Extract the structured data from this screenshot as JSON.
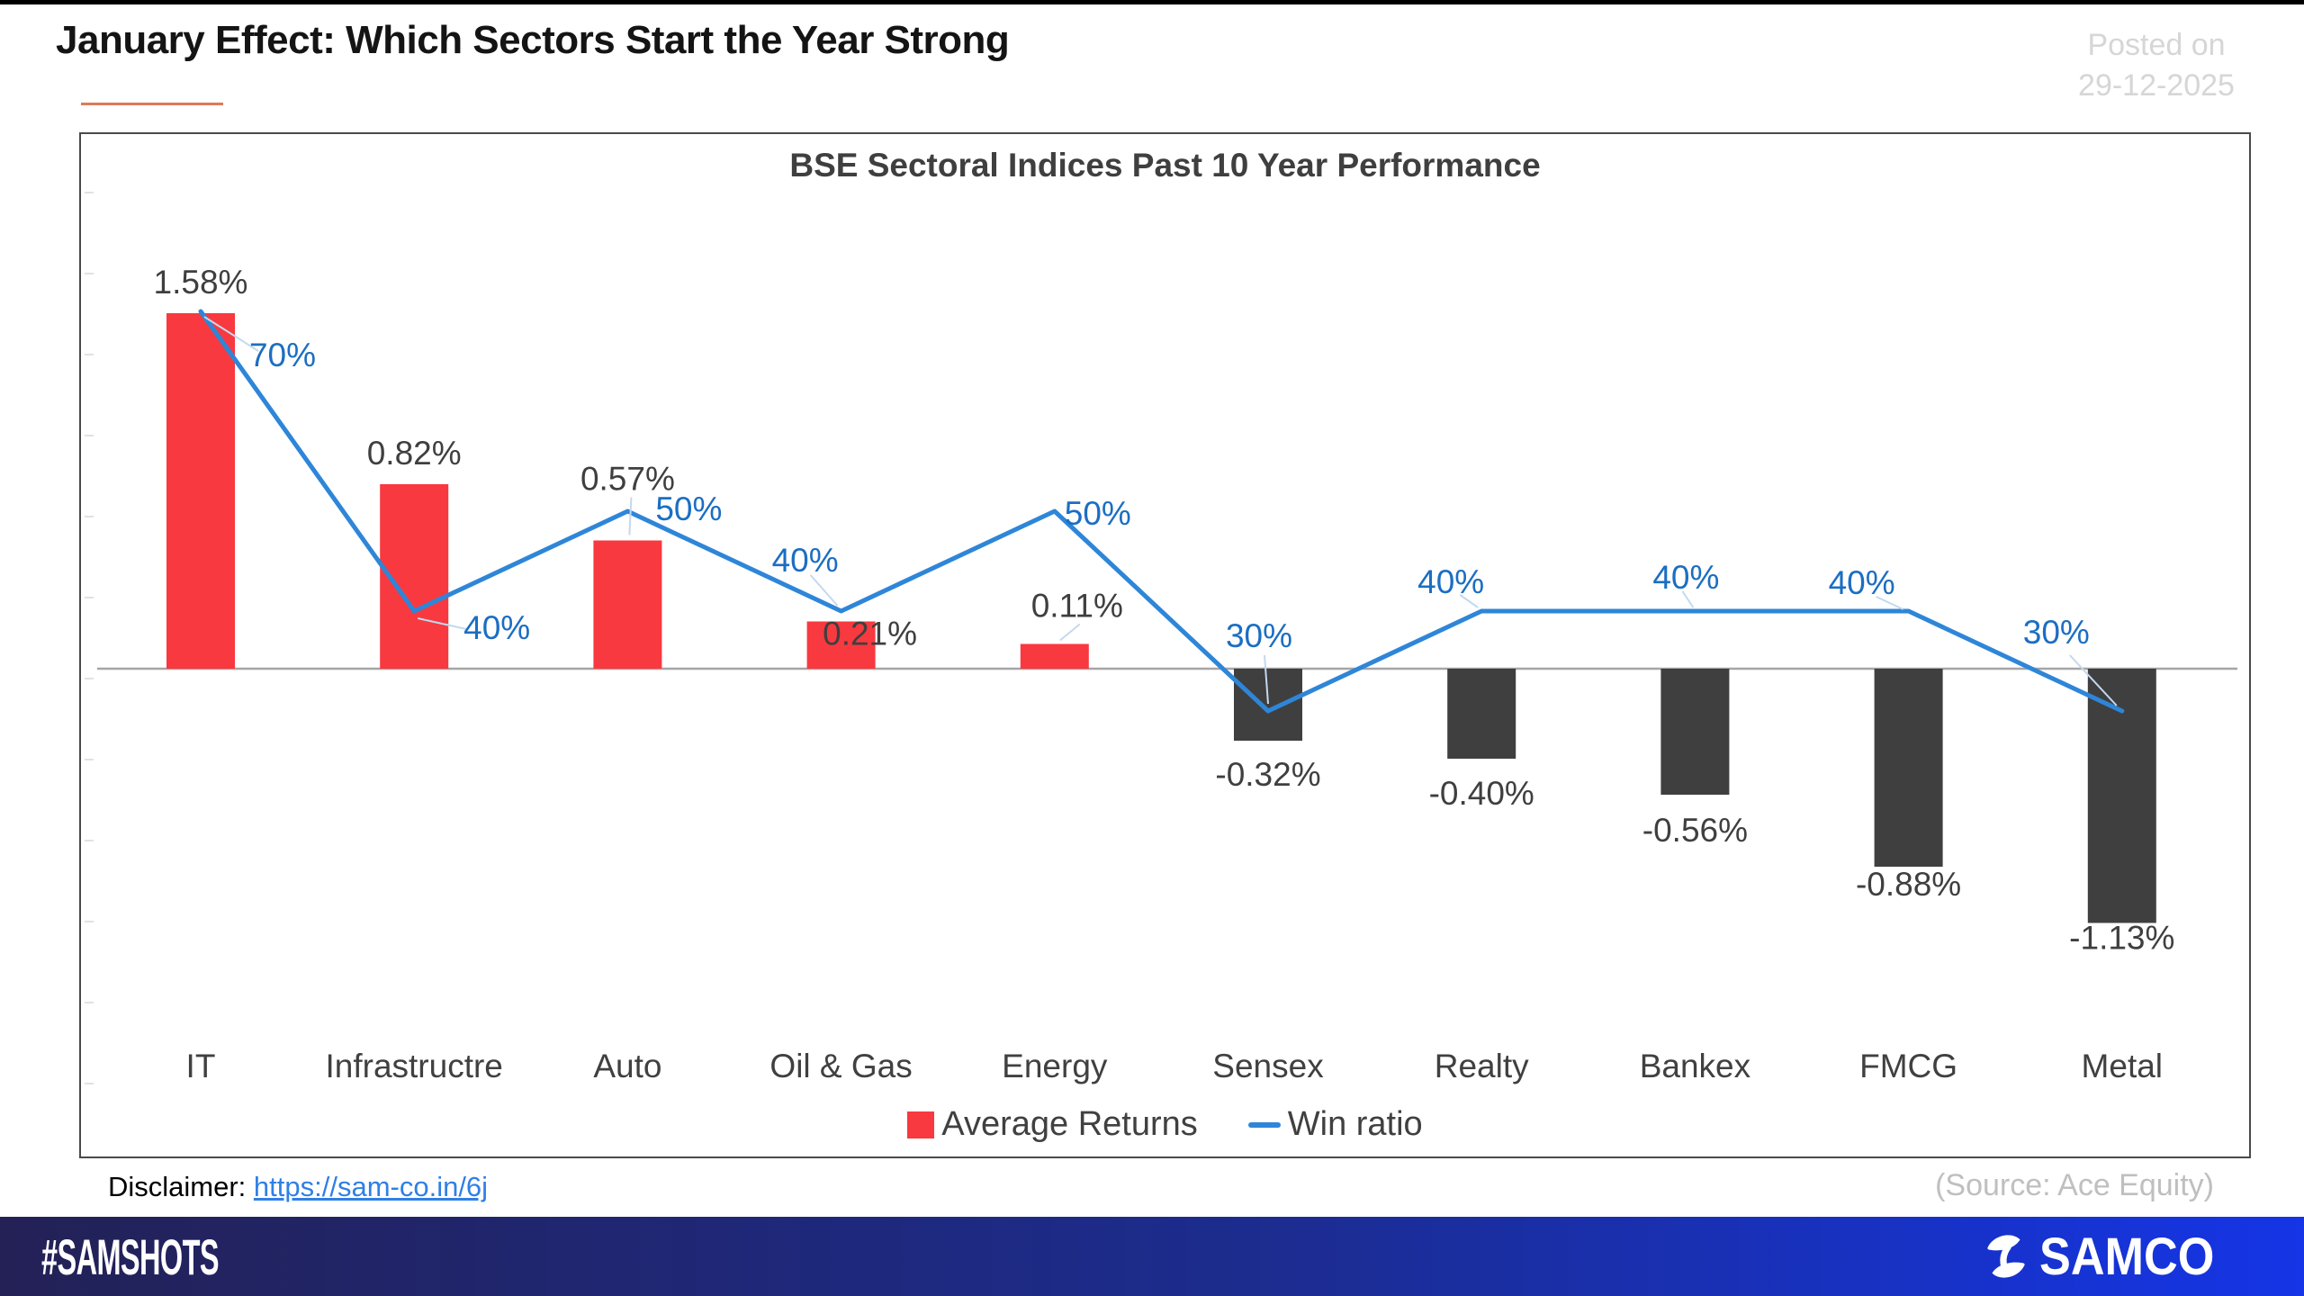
{
  "header": {
    "title": "January Effect: Which Sectors Start the Year Strong",
    "underline_color": "#DD7B57",
    "posted_on_line1": "Posted on",
    "posted_on_line2": "29-12-2025"
  },
  "chart_data": {
    "type": "bar",
    "title": "BSE Sectoral Indices Past 10 Year Performance",
    "categories": [
      "IT",
      "Infrastructre",
      "Auto",
      "Oil & Gas",
      "Energy",
      "Sensex",
      "Realty",
      "Bankex",
      "FMCG",
      "Metal"
    ],
    "series": [
      {
        "name": "Average Returns",
        "type": "bar",
        "unit": "%",
        "values": [
          1.58,
          0.82,
          0.57,
          0.21,
          0.11,
          -0.32,
          -0.4,
          -0.56,
          -0.88,
          -1.13
        ],
        "labels": [
          "1.58%",
          "0.82%",
          "0.57%",
          "0.21%",
          "0.11%",
          "-0.32%",
          "-0.40%",
          "-0.56%",
          "-0.88%",
          "-1.13%"
        ],
        "color_positive": "#F8393F",
        "color_negative": "#3F3F3F",
        "label_color": "#3F3F3F"
      },
      {
        "name": "Win ratio",
        "type": "line",
        "unit": "%",
        "values": [
          70,
          40,
          50,
          40,
          50,
          30,
          40,
          40,
          40,
          30
        ],
        "labels": [
          "70%",
          "40%",
          "50%",
          "40%",
          "50%",
          "30%",
          "40%",
          "40%",
          "40%",
          "30%"
        ],
        "color": "#2E86D8",
        "label_color": "#1B6EC2"
      }
    ],
    "legend": [
      {
        "label": "Average Returns",
        "swatch": "square",
        "color": "#F8393F"
      },
      {
        "label": "Win ratio",
        "swatch": "line",
        "color": "#2E86D8"
      }
    ],
    "axis": {
      "zero_line_color": "#A6A6A6",
      "tick_color": "#D9D9D9",
      "leader_color": "#C3D9EE",
      "category_label_color": "#404040",
      "ylim_primary": [
        -1.5,
        2.0
      ],
      "ylim_secondary": [
        0,
        100
      ],
      "grid": "off",
      "legend_position": "bottom-center"
    }
  },
  "footer_info": {
    "disclaimer_label": "Disclaimer: ",
    "disclaimer_link": "https://sam-co.in/6j",
    "source": "(Source: Ace Equity)"
  },
  "brand_bar": {
    "hashtag": "#SAMSHOTS",
    "logo_text": "SAMCO",
    "gradient_left": "#232156",
    "gradient_right": "#1535E6"
  }
}
